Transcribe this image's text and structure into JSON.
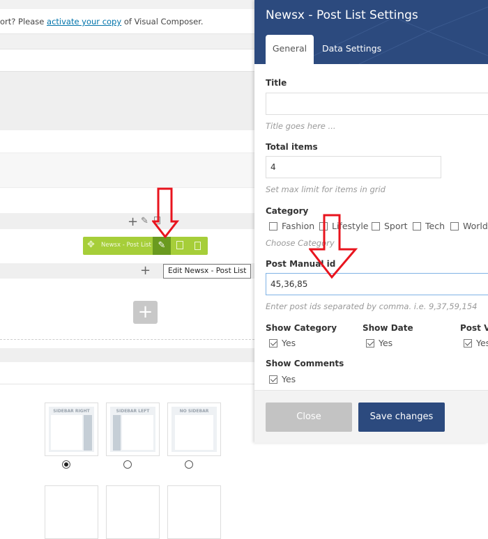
{
  "notice": {
    "prefix": "ort? Please ",
    "link": "activate your copy",
    "suffix": " of Visual Composer."
  },
  "element_bar": {
    "label": "Newsx - Post List",
    "tooltip": "Edit Newsx - Post List"
  },
  "layout_options": [
    {
      "label": "SIDEBAR RIGHT",
      "selected": true
    },
    {
      "label": "SIDEBAR LEFT",
      "selected": false
    },
    {
      "label": "NO SIDEBAR",
      "selected": false
    }
  ],
  "panel": {
    "title": "Newsx - Post List Settings",
    "tabs": [
      {
        "label": "General",
        "active": true
      },
      {
        "label": "Data Settings",
        "active": false
      }
    ],
    "title_field": {
      "label": "Title",
      "value": "",
      "help": "Title goes here ..."
    },
    "total_items": {
      "label": "Total items",
      "value": "4",
      "help": "Set max limit for items in grid"
    },
    "category": {
      "label": "Category",
      "options": [
        {
          "label": "Fashion",
          "checked": false
        },
        {
          "label": "Lifestyle",
          "checked": false
        },
        {
          "label": "Sport",
          "checked": false
        },
        {
          "label": "Tech",
          "checked": false
        },
        {
          "label": "World",
          "checked": false
        }
      ],
      "help": "Choose Category"
    },
    "post_manual_id": {
      "label": "Post Manual id",
      "value": "45,36,85",
      "help": "Enter post ids separated by comma. i.e. 9,37,59,154"
    },
    "show_category": {
      "label": "Show Category",
      "option": "Yes",
      "checked": true
    },
    "show_date": {
      "label": "Show Date",
      "option": "Yes",
      "checked": true
    },
    "post_views": {
      "label": "Post Vi",
      "option": "Yes",
      "checked": true
    },
    "show_comments": {
      "label": "Show Comments",
      "option": "Yes",
      "checked": true
    },
    "close_label": "Close",
    "save_label": "Save changes"
  },
  "colors": {
    "header": "#2c4a7e",
    "element_bar": "#a6ce39",
    "element_bar_active": "#6a9a1f",
    "annotation_arrow": "#e8141e"
  }
}
